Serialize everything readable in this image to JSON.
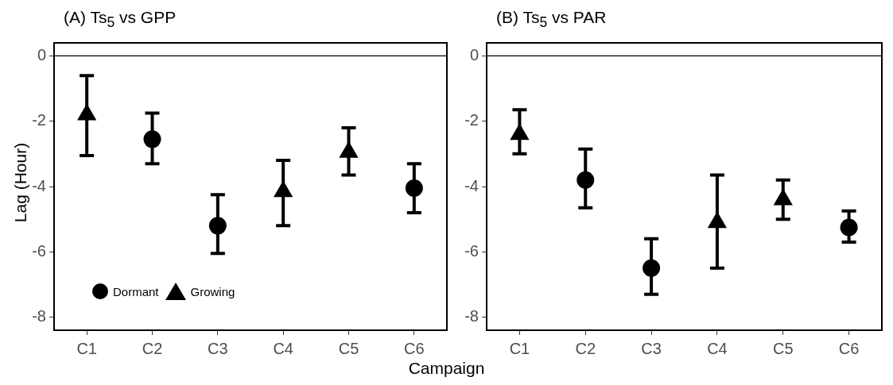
{
  "chart_data": [
    {
      "type": "scatter",
      "title": "(A) Ts$_{5}$ vs GPP",
      "xlabel": "Campaign",
      "ylabel": "Lag (Hour)",
      "categories": [
        "C1",
        "C2",
        "C3",
        "C4",
        "C5",
        "C6"
      ],
      "series": [
        {
          "name": "Dormant",
          "color": "#000000",
          "marker": "circle",
          "values": [
            null,
            -2.55,
            -5.2,
            null,
            null,
            -4.05
          ],
          "errors": [
            null,
            [
              -3.3,
              -1.75
            ],
            [
              -6.05,
              -4.25
            ],
            null,
            null,
            [
              -4.8,
              -3.3
            ]
          ]
        },
        {
          "name": "Growing",
          "color": "#000000",
          "marker": "triangle",
          "values": [
            -1.8,
            null,
            null,
            -4.15,
            -2.95,
            null
          ],
          "errors": [
            [
              -3.05,
              -0.6
            ],
            null,
            null,
            [
              -5.2,
              -3.2
            ],
            [
              -3.65,
              -2.2
            ],
            null
          ]
        }
      ],
      "ylim": [
        -8.4,
        0.4
      ],
      "yticks": [
        -8,
        -6,
        -4,
        -2,
        0
      ],
      "grid": false,
      "legend": "bottom left",
      "ref_lines": [
        {
          "axis": "y",
          "value": 0,
          "color": "#000000"
        }
      ]
    },
    {
      "type": "scatter",
      "title": "(B) Ts$_{5}$ vs PAR",
      "categories": [
        "C1",
        "C2",
        "C3",
        "C4",
        "C5",
        "C6"
      ],
      "series": [
        {
          "color": "#000000",
          "marker": "circle",
          "values": [
            null,
            -3.8,
            -6.5,
            null,
            null,
            -5.25
          ],
          "errors": [
            null,
            [
              -4.65,
              -2.85
            ],
            [
              -7.3,
              -5.6
            ],
            null,
            null,
            [
              -5.7,
              -4.75
            ]
          ]
        },
        {
          "color": "#000000",
          "marker": "triangle",
          "values": [
            -2.4,
            null,
            null,
            -5.1,
            -4.4,
            null
          ],
          "errors": [
            [
              -3.0,
              -1.65
            ],
            null,
            null,
            [
              -6.5,
              -3.65
            ],
            [
              -5.0,
              -3.8
            ],
            null
          ]
        }
      ],
      "ylim": [
        -8.4,
        0.4
      ],
      "yticks": [
        -8,
        -6,
        -4,
        -2,
        0
      ],
      "grid": false,
      "ref_lines": [
        {
          "axis": "y",
          "value": 0,
          "color": "#000000"
        }
      ]
    }
  ]
}
